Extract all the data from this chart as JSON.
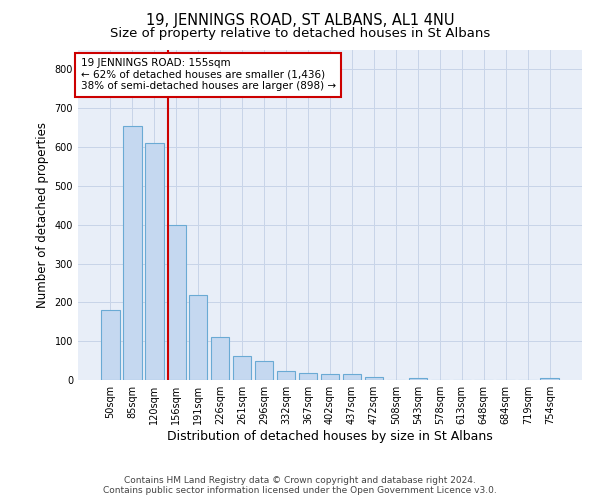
{
  "title": "19, JENNINGS ROAD, ST ALBANS, AL1 4NU",
  "subtitle": "Size of property relative to detached houses in St Albans",
  "xlabel": "Distribution of detached houses by size in St Albans",
  "ylabel": "Number of detached properties",
  "footer_line1": "Contains HM Land Registry data © Crown copyright and database right 2024.",
  "footer_line2": "Contains public sector information licensed under the Open Government Licence v3.0.",
  "bar_labels": [
    "50sqm",
    "85sqm",
    "120sqm",
    "156sqm",
    "191sqm",
    "226sqm",
    "261sqm",
    "296sqm",
    "332sqm",
    "367sqm",
    "402sqm",
    "437sqm",
    "472sqm",
    "508sqm",
    "543sqm",
    "578sqm",
    "613sqm",
    "648sqm",
    "684sqm",
    "719sqm",
    "754sqm"
  ],
  "bar_values": [
    180,
    655,
    610,
    400,
    218,
    110,
    63,
    50,
    22,
    18,
    15,
    15,
    8,
    0,
    6,
    0,
    0,
    0,
    0,
    0,
    5
  ],
  "bar_color": "#c5d8f0",
  "bar_edge_color": "#6aaad4",
  "vline_color": "#cc0000",
  "annotation_line1": "19 JENNINGS ROAD: 155sqm",
  "annotation_line2": "← 62% of detached houses are smaller (1,436)",
  "annotation_line3": "38% of semi-detached houses are larger (898) →",
  "annotation_box_facecolor": "#ffffff",
  "annotation_box_edgecolor": "#cc0000",
  "ylim": [
    0,
    850
  ],
  "yticks": [
    0,
    100,
    200,
    300,
    400,
    500,
    600,
    700,
    800
  ],
  "plot_bg_color": "#e8eef8",
  "fig_bg_color": "#ffffff",
  "grid_color": "#c8d4e8",
  "title_fontsize": 10.5,
  "subtitle_fontsize": 9.5,
  "ylabel_fontsize": 8.5,
  "xlabel_fontsize": 9,
  "tick_fontsize": 7,
  "annotation_fontsize": 7.5,
  "footer_fontsize": 6.5
}
